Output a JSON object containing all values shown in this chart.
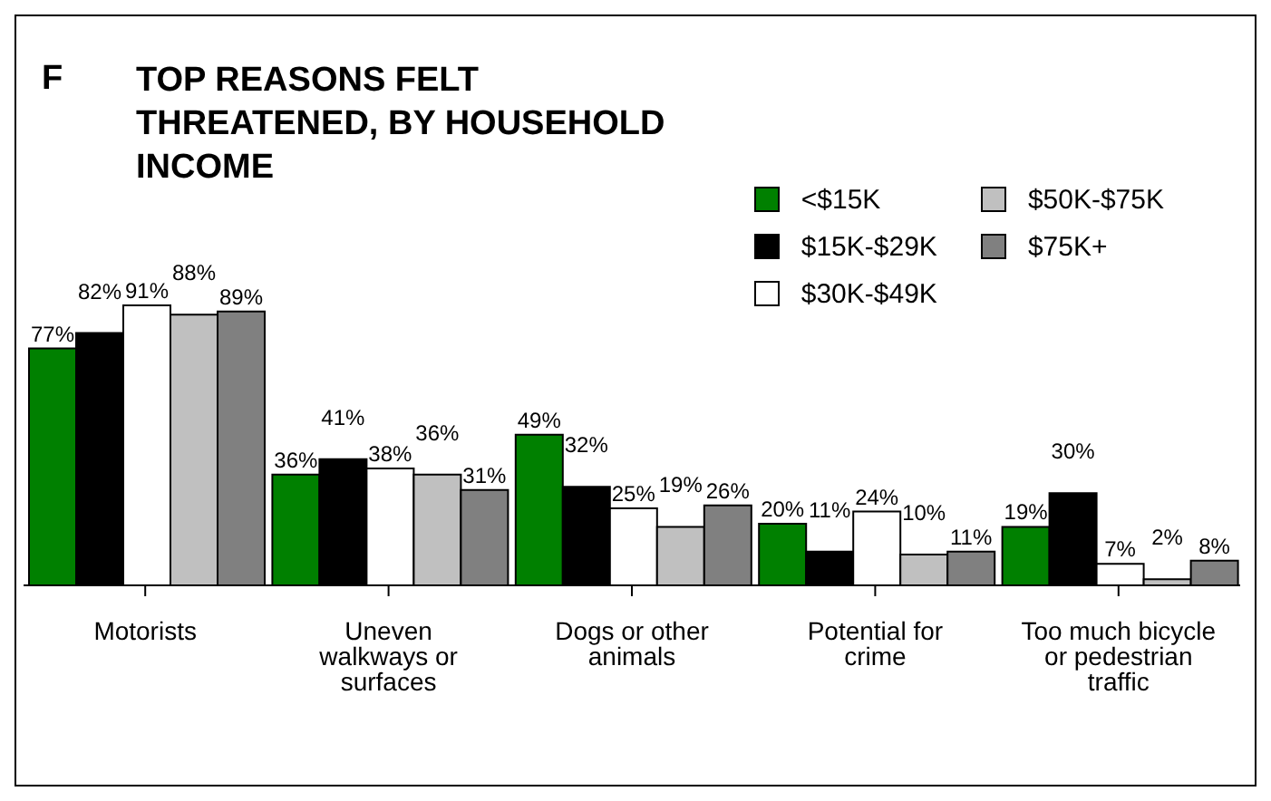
{
  "chart_data": {
    "type": "bar",
    "title": "TOP REASONS FELT THREATENED, BY HOUSEHOLD INCOME",
    "annotations": [
      "F"
    ],
    "categories": [
      "Motorists",
      "Uneven walkways or surfaces",
      "Dogs or other animals",
      "Potential for crime",
      "Too much bicycle or pedestrian traffic"
    ],
    "series": [
      {
        "name": "<$15K",
        "color": "#008000",
        "values": [
          77,
          36,
          49,
          20,
          19
        ],
        "value_labels": [
          "77%",
          "36%",
          "49%",
          "20%",
          "19%"
        ]
      },
      {
        "name": "$15K-$29K",
        "color": "#000000",
        "values": [
          82,
          41,
          32,
          11,
          30
        ],
        "value_labels": [
          "82%",
          "41%",
          "32%",
          "11%",
          "30%"
        ]
      },
      {
        "name": "$30K-$49K",
        "color": "#ffffff",
        "values": [
          91,
          38,
          25,
          24,
          7
        ],
        "value_labels": [
          "91%",
          "38%",
          "25%",
          "24%",
          "7%"
        ]
      },
      {
        "name": "$50K-$75K",
        "color": "#c0c0c0",
        "values": [
          88,
          36,
          19,
          10,
          2
        ],
        "value_labels": [
          "88%",
          "36%",
          "19%",
          "10%",
          "2%"
        ]
      },
      {
        "name": "$75K+",
        "color": "#808080",
        "values": [
          89,
          31,
          26,
          11,
          8
        ],
        "value_labels": [
          "89%",
          "31%",
          "26%",
          "11%",
          "8%"
        ]
      }
    ],
    "legend": "top right"
  }
}
